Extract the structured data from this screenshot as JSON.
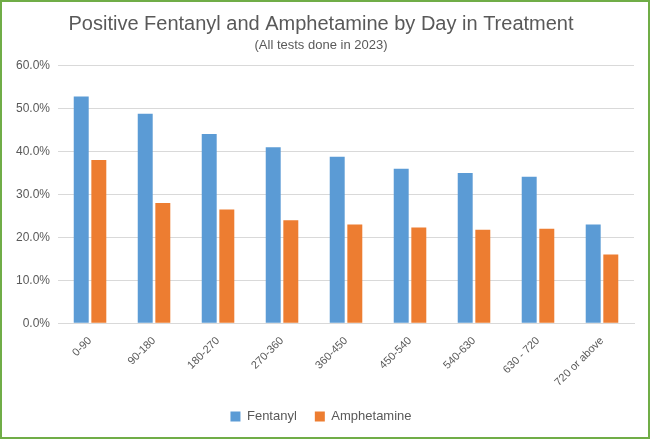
{
  "chart_data": {
    "type": "bar",
    "title": "Positive Fentanyl and Amphetamine by Day in Treatment",
    "subtitle": "(All tests done in 2023)",
    "categories": [
      "0-90",
      "90-180",
      "180-270",
      "270-360",
      "360-450",
      "450-540",
      "540-630",
      "630 - 720",
      "720 or above"
    ],
    "series": [
      {
        "name": "Fentanyl",
        "color": "#5b9bd5",
        "values": [
          52.8,
          48.8,
          44.1,
          41.0,
          38.8,
          36.0,
          35.0,
          34.1,
          23.0
        ]
      },
      {
        "name": "Amphetamine",
        "color": "#ed7d31",
        "values": [
          38.0,
          28.0,
          26.5,
          24.0,
          23.0,
          22.3,
          21.8,
          22.0,
          16.0
        ]
      }
    ],
    "ylim": [
      0,
      60
    ],
    "yticks": [
      {
        "value": 0,
        "label": "0.0%"
      },
      {
        "value": 10,
        "label": "10.0%"
      },
      {
        "value": 20,
        "label": "20.0%"
      },
      {
        "value": 30,
        "label": "30.0%"
      },
      {
        "value": 40,
        "label": "40.0%"
      },
      {
        "value": 50,
        "label": "50.0%"
      },
      {
        "value": 60,
        "label": "60.0%"
      }
    ],
    "grid": true,
    "legend": "bottom"
  }
}
